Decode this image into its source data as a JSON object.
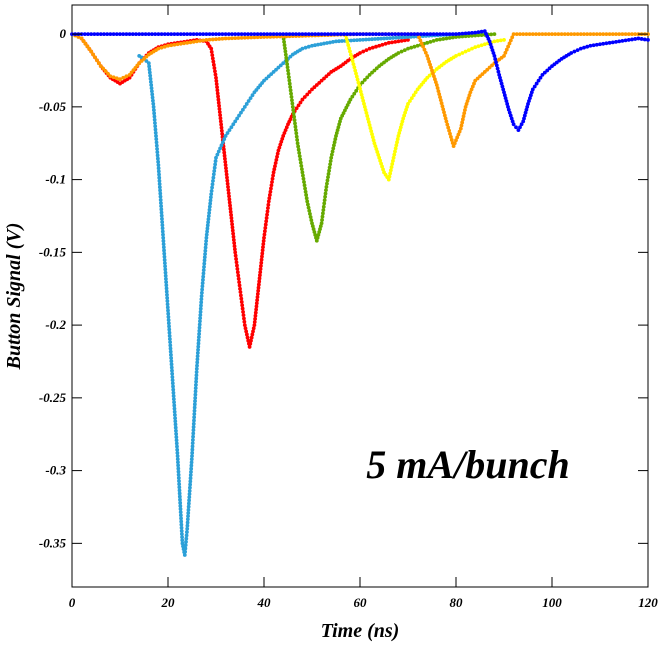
{
  "chart_data": {
    "type": "scatter",
    "xlabel": "Time (ns)",
    "ylabel": "Button Signal (V)",
    "annotation": "5 mA/bunch",
    "xlim": [
      0,
      120
    ],
    "ylim": [
      -0.38,
      0.02
    ],
    "xticks": [
      0,
      20,
      40,
      60,
      80,
      100,
      120
    ],
    "xtick_labels": [
      "0",
      "20",
      "40",
      "60",
      "80",
      "100",
      "120"
    ],
    "yticks": [
      0,
      -0.05,
      -0.1,
      -0.15,
      -0.2,
      -0.25,
      -0.3,
      -0.35
    ],
    "ytick_labels": [
      "0",
      "-0.05",
      "-0.1",
      "-0.15",
      "-0.2",
      "-0.25",
      "-0.3",
      "-0.35"
    ],
    "grid": false,
    "legend": "none",
    "series": [
      {
        "color": "#ff0000",
        "points": [
          [
            2,
            -0.003
          ],
          [
            4,
            -0.012
          ],
          [
            6,
            -0.022
          ],
          [
            8,
            -0.03
          ],
          [
            10,
            -0.034
          ],
          [
            12,
            -0.03
          ],
          [
            14,
            -0.02
          ],
          [
            16,
            -0.013
          ],
          [
            18,
            -0.009
          ],
          [
            20,
            -0.007
          ],
          [
            22,
            -0.006
          ],
          [
            24,
            -0.005
          ],
          [
            26,
            -0.004
          ],
          [
            28,
            -0.005
          ],
          [
            29,
            -0.01
          ],
          [
            30,
            -0.03
          ],
          [
            31,
            -0.06
          ],
          [
            32,
            -0.09
          ],
          [
            33,
            -0.12
          ],
          [
            34,
            -0.15
          ],
          [
            35,
            -0.175
          ],
          [
            36,
            -0.2
          ],
          [
            37,
            -0.215
          ],
          [
            38,
            -0.2
          ],
          [
            39,
            -0.17
          ],
          [
            40,
            -0.14
          ],
          [
            41,
            -0.115
          ],
          [
            42,
            -0.095
          ],
          [
            43,
            -0.08
          ],
          [
            44,
            -0.07
          ],
          [
            45,
            -0.062
          ],
          [
            46,
            -0.055
          ],
          [
            48,
            -0.045
          ],
          [
            50,
            -0.038
          ],
          [
            52,
            -0.032
          ],
          [
            54,
            -0.026
          ],
          [
            56,
            -0.022
          ],
          [
            58,
            -0.017
          ],
          [
            60,
            -0.013
          ],
          [
            62,
            -0.01
          ],
          [
            64,
            -0.008
          ],
          [
            66,
            -0.006
          ],
          [
            68,
            -0.005
          ],
          [
            70,
            -0.004
          ]
        ]
      },
      {
        "color": "#2ca0d8",
        "points": [
          [
            14,
            -0.015
          ],
          [
            15,
            -0.017
          ],
          [
            16,
            -0.02
          ],
          [
            17,
            -0.05
          ],
          [
            18,
            -0.09
          ],
          [
            19,
            -0.14
          ],
          [
            20,
            -0.19
          ],
          [
            21,
            -0.24
          ],
          [
            22,
            -0.29
          ],
          [
            22.5,
            -0.32
          ],
          [
            23,
            -0.35
          ],
          [
            23.5,
            -0.358
          ],
          [
            24,
            -0.34
          ],
          [
            25,
            -0.29
          ],
          [
            26,
            -0.23
          ],
          [
            27,
            -0.18
          ],
          [
            28,
            -0.14
          ],
          [
            29,
            -0.11
          ],
          [
            30,
            -0.085
          ],
          [
            32,
            -0.07
          ],
          [
            34,
            -0.06
          ],
          [
            36,
            -0.05
          ],
          [
            38,
            -0.04
          ],
          [
            40,
            -0.032
          ],
          [
            42,
            -0.026
          ],
          [
            44,
            -0.02
          ],
          [
            46,
            -0.014
          ],
          [
            48,
            -0.01
          ],
          [
            50,
            -0.008
          ],
          [
            55,
            -0.005
          ],
          [
            60,
            -0.004
          ],
          [
            65,
            -0.003
          ],
          [
            70,
            -0.002
          ],
          [
            75,
            -0.001
          ],
          [
            80,
            0
          ],
          [
            86,
            0
          ]
        ]
      },
      {
        "color": "#66aa00",
        "points": [
          [
            44,
            -0.001
          ],
          [
            45,
            -0.025
          ],
          [
            46,
            -0.05
          ],
          [
            47,
            -0.075
          ],
          [
            48,
            -0.095
          ],
          [
            49,
            -0.115
          ],
          [
            50,
            -0.13
          ],
          [
            51,
            -0.142
          ],
          [
            52,
            -0.13
          ],
          [
            53,
            -0.105
          ],
          [
            54,
            -0.085
          ],
          [
            55,
            -0.07
          ],
          [
            56,
            -0.058
          ],
          [
            58,
            -0.045
          ],
          [
            60,
            -0.035
          ],
          [
            62,
            -0.028
          ],
          [
            64,
            -0.022
          ],
          [
            66,
            -0.017
          ],
          [
            68,
            -0.013
          ],
          [
            70,
            -0.01
          ],
          [
            72,
            -0.008
          ],
          [
            74,
            -0.006
          ],
          [
            76,
            -0.004
          ],
          [
            78,
            -0.003
          ],
          [
            80,
            -0.002
          ],
          [
            84,
            -0.001
          ],
          [
            88,
            0
          ]
        ]
      },
      {
        "color": "#ffff00",
        "points": [
          [
            57,
            -0.001
          ],
          [
            59,
            -0.025
          ],
          [
            61,
            -0.05
          ],
          [
            63,
            -0.075
          ],
          [
            65,
            -0.095
          ],
          [
            66,
            -0.1
          ],
          [
            67,
            -0.085
          ],
          [
            68,
            -0.07
          ],
          [
            69,
            -0.058
          ],
          [
            70,
            -0.048
          ],
          [
            72,
            -0.038
          ],
          [
            74,
            -0.03
          ],
          [
            76,
            -0.024
          ],
          [
            78,
            -0.019
          ],
          [
            80,
            -0.015
          ],
          [
            82,
            -0.012
          ],
          [
            84,
            -0.009
          ],
          [
            86,
            -0.007
          ],
          [
            88,
            -0.005
          ],
          [
            90,
            -0.004
          ]
        ]
      },
      {
        "color": "#ff9900",
        "points": [
          [
            0,
            0
          ],
          [
            2,
            -0.003
          ],
          [
            4,
            -0.012
          ],
          [
            6,
            -0.022
          ],
          [
            8,
            -0.029
          ],
          [
            10,
            -0.031
          ],
          [
            12,
            -0.028
          ],
          [
            14,
            -0.02
          ],
          [
            16,
            -0.014
          ],
          [
            18,
            -0.01
          ],
          [
            20,
            -0.008
          ],
          [
            24,
            -0.006
          ],
          [
            28,
            -0.004
          ],
          [
            32,
            -0.003
          ],
          [
            40,
            -0.002
          ],
          [
            50,
            -0.001
          ],
          [
            60,
            0
          ],
          [
            72,
            0
          ],
          [
            74,
            -0.015
          ],
          [
            76,
            -0.035
          ],
          [
            78,
            -0.06
          ],
          [
            79.5,
            -0.077
          ],
          [
            81,
            -0.065
          ],
          [
            82,
            -0.05
          ],
          [
            83,
            -0.04
          ],
          [
            84,
            -0.032
          ],
          [
            86,
            -0.026
          ],
          [
            88,
            -0.02
          ],
          [
            90,
            -0.015
          ],
          [
            92,
            0
          ],
          [
            100,
            0
          ],
          [
            110,
            0
          ],
          [
            120,
            0
          ]
        ]
      },
      {
        "color": "#0000ff",
        "points": [
          [
            0,
            0
          ],
          [
            10,
            0
          ],
          [
            20,
            0
          ],
          [
            30,
            0
          ],
          [
            40,
            0
          ],
          [
            50,
            0
          ],
          [
            60,
            0
          ],
          [
            70,
            0
          ],
          [
            80,
            0
          ],
          [
            84,
            0.001
          ],
          [
            86,
            0.002
          ],
          [
            87,
            -0.005
          ],
          [
            88,
            -0.015
          ],
          [
            89,
            -0.028
          ],
          [
            90,
            -0.04
          ],
          [
            91,
            -0.052
          ],
          [
            92,
            -0.062
          ],
          [
            93,
            -0.066
          ],
          [
            94,
            -0.06
          ],
          [
            95,
            -0.048
          ],
          [
            96,
            -0.038
          ],
          [
            98,
            -0.028
          ],
          [
            100,
            -0.022
          ],
          [
            102,
            -0.017
          ],
          [
            104,
            -0.013
          ],
          [
            106,
            -0.01
          ],
          [
            108,
            -0.008
          ],
          [
            110,
            -0.007
          ],
          [
            112,
            -0.006
          ],
          [
            114,
            -0.005
          ],
          [
            116,
            -0.004
          ],
          [
            118,
            -0.003
          ],
          [
            120,
            -0.004
          ]
        ]
      }
    ]
  }
}
